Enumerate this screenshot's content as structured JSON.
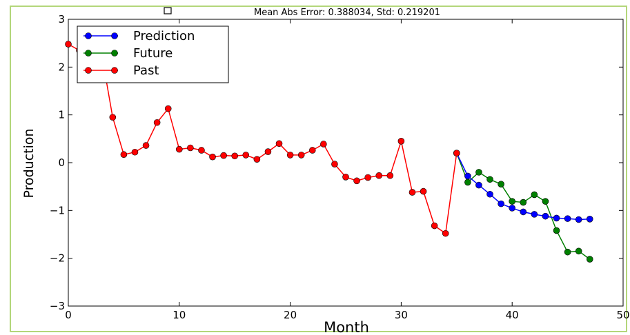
{
  "chart_data": {
    "type": "line",
    "title": "Mean Abs Error: 0.388034, Std: 0.219201",
    "xlabel": "Month",
    "ylabel": "Production",
    "xlim": [
      0,
      50
    ],
    "ylim": [
      -3,
      3
    ],
    "xticks": [
      0,
      10,
      20,
      30,
      40,
      50
    ],
    "yticks": [
      -3,
      -2,
      -1,
      0,
      1,
      2,
      3
    ],
    "grid": false,
    "legend": "top-left",
    "series": [
      {
        "name": "Prediction",
        "color": "#0000ff",
        "x": [
          35,
          36,
          37,
          38,
          39,
          40,
          41,
          42,
          43,
          44,
          45,
          46,
          47
        ],
        "y": [
          0.2,
          -0.28,
          -0.47,
          -0.66,
          -0.86,
          -0.95,
          -1.03,
          -1.08,
          -1.12,
          -1.16,
          -1.17,
          -1.19,
          -1.18
        ]
      },
      {
        "name": "Future",
        "color": "#008000",
        "x": [
          35,
          36,
          37,
          38,
          39,
          40,
          41,
          42,
          43,
          44,
          45,
          46,
          47
        ],
        "y": [
          0.2,
          -0.41,
          -0.2,
          -0.35,
          -0.45,
          -0.81,
          -0.83,
          -0.67,
          -0.81,
          -1.42,
          -1.87,
          -1.85,
          -2.02
        ]
      },
      {
        "name": "Past",
        "color": "#ff0000",
        "x": [
          0,
          1,
          2,
          3,
          4,
          5,
          6,
          7,
          8,
          9,
          10,
          11,
          12,
          13,
          14,
          15,
          16,
          17,
          18,
          19,
          20,
          21,
          22,
          23,
          24,
          25,
          26,
          27,
          28,
          29,
          30,
          31,
          32,
          33,
          34,
          35
        ],
        "y": [
          2.48,
          2.35,
          2.38,
          2.28,
          0.95,
          0.17,
          0.22,
          0.36,
          0.84,
          1.13,
          0.28,
          0.31,
          0.26,
          0.12,
          0.15,
          0.14,
          0.16,
          0.07,
          0.23,
          0.4,
          0.16,
          0.16,
          0.26,
          0.39,
          -0.03,
          -0.3,
          -0.38,
          -0.31,
          -0.27,
          -0.27,
          0.45,
          -0.62,
          -0.6,
          -1.32,
          -1.48,
          0.2
        ]
      }
    ]
  }
}
